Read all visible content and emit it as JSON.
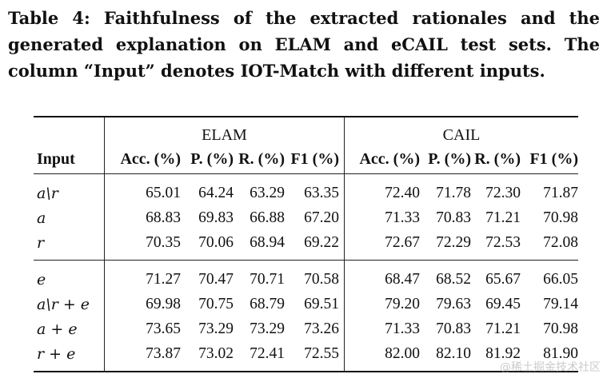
{
  "caption": {
    "label": "Table 4:",
    "text": "Faithfulness of the extracted rationales and the generated explanation on ELAM and eCAIL test sets. The column “Input” denotes IOT-Match with different inputs."
  },
  "table": {
    "groups": [
      "ELAM",
      "CAIL"
    ],
    "headers": [
      "Input",
      "Acc. (%)",
      "P. (%)",
      "R. (%)",
      "F1 (%)",
      "Acc. (%)",
      "P. (%)",
      "R. (%)",
      "F1 (%)"
    ],
    "sections": [
      {
        "rows": [
          {
            "input": "a\\r",
            "values": [
              "65.01",
              "64.24",
              "63.29",
              "63.35",
              "72.40",
              "71.78",
              "72.30",
              "71.87"
            ],
            "bold": [
              false,
              false,
              false,
              false,
              false,
              false,
              false,
              false
            ]
          },
          {
            "input": "a",
            "values": [
              "68.83",
              "69.83",
              "66.88",
              "67.20",
              "71.33",
              "70.83",
              "71.21",
              "70.98"
            ],
            "bold": [
              false,
              false,
              false,
              false,
              false,
              false,
              false,
              false
            ]
          },
          {
            "input": "r",
            "values": [
              "70.35",
              "70.06",
              "68.94",
              "69.22",
              "72.67",
              "72.29",
              "72.53",
              "72.08"
            ],
            "bold": [
              false,
              false,
              false,
              false,
              false,
              false,
              false,
              false
            ]
          }
        ]
      },
      {
        "rows": [
          {
            "input": "e",
            "values": [
              "71.27",
              "70.47",
              "70.71",
              "70.58",
              "68.47",
              "68.52",
              "65.67",
              "66.05"
            ],
            "bold": [
              false,
              false,
              false,
              false,
              false,
              false,
              false,
              false
            ]
          },
          {
            "input": "a\\r + e",
            "values": [
              "69.98",
              "70.75",
              "68.79",
              "69.51",
              "79.20",
              "79.63",
              "69.45",
              "79.14"
            ],
            "bold": [
              false,
              false,
              false,
              false,
              false,
              false,
              false,
              false
            ]
          },
          {
            "input": "a + e",
            "values": [
              "73.65",
              "73.29",
              "73.29",
              "73.26",
              "71.33",
              "70.83",
              "71.21",
              "70.98"
            ],
            "bold": [
              false,
              true,
              true,
              true,
              false,
              false,
              false,
              false
            ]
          },
          {
            "input": "r + e",
            "values": [
              "73.87",
              "73.02",
              "72.41",
              "72.55",
              "82.00",
              "82.10",
              "81.92",
              "81.90"
            ],
            "bold": [
              true,
              false,
              false,
              false,
              true,
              true,
              true,
              true
            ]
          }
        ]
      }
    ]
  },
  "watermark": "@稀土掘金技术社区"
}
